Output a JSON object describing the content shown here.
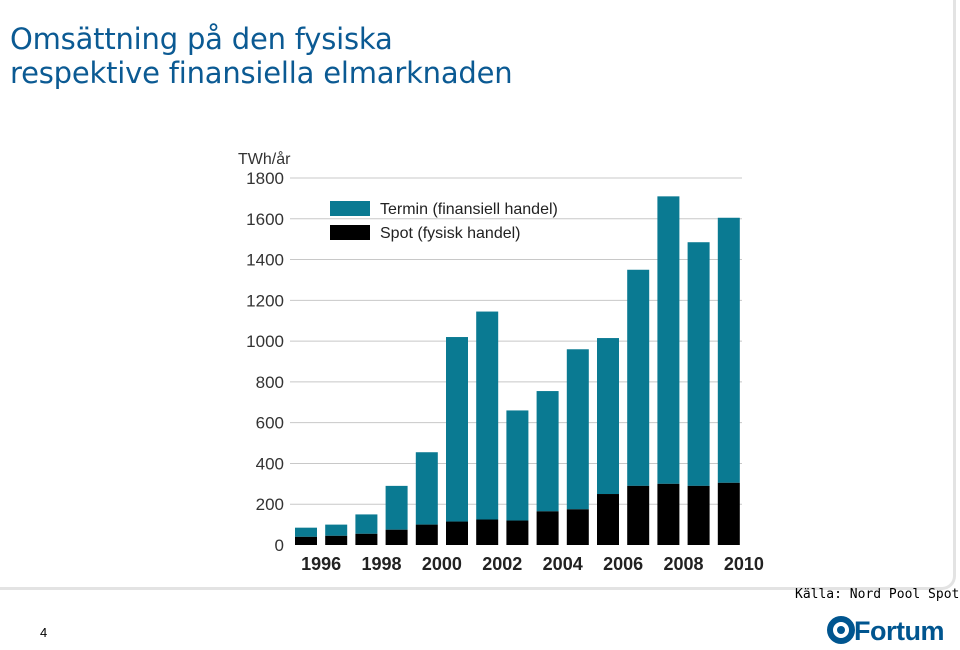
{
  "slide": {
    "title_line1": "Omsättning på den fysiska",
    "title_line2": "respektive finansiella elmarknaden",
    "source": "Källa: Nord Pool Spot",
    "page_number": "4",
    "logo_text": "Fortum"
  },
  "colors": {
    "title": "#0b5a93",
    "termin": "#0a7a92",
    "spot": "#000000",
    "grid": "#c8c8c8",
    "logo": "#00558f"
  },
  "chart_data": {
    "type": "bar",
    "stacked": true,
    "ylabel": "TWh/år",
    "ylim": [
      0,
      1800
    ],
    "yticks": [
      0,
      200,
      400,
      600,
      800,
      1000,
      1200,
      1400,
      1600,
      1800
    ],
    "grid": true,
    "legend_position": "top-left",
    "categories": [
      "1996",
      "1997",
      "1998",
      "1999",
      "2000",
      "2001",
      "2002",
      "2003",
      "2004",
      "2005",
      "2006",
      "2007",
      "2008",
      "2009",
      "2010"
    ],
    "xtick_labels": [
      "1996",
      "1998",
      "2000",
      "2002",
      "2004",
      "2006",
      "2008",
      "2010"
    ],
    "series": [
      {
        "name": "Spot (fysisk handel)",
        "color": "#000000",
        "values": [
          40,
          45,
          55,
          75,
          100,
          115,
          125,
          120,
          165,
          175,
          250,
          290,
          300,
          290,
          305
        ]
      },
      {
        "name": "Termin (finansiell handel)",
        "color": "#0a7a92",
        "values": [
          45,
          55,
          95,
          215,
          355,
          905,
          1020,
          540,
          590,
          785,
          765,
          1060,
          1410,
          1195,
          1300
        ]
      }
    ]
  }
}
